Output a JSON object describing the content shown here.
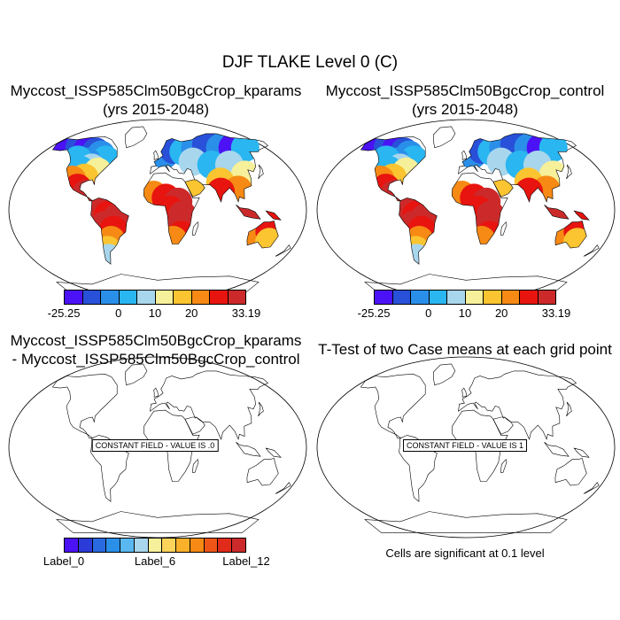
{
  "title": "DJF TLAKE Level 0 (C)",
  "panels": [
    {
      "title1": "Myccost_ISSP585Clm50BgcCrop_kparams",
      "title2": "(yrs 2015-2048)"
    },
    {
      "title1": "Myccost_ISSP585Clm50BgcCrop_control",
      "title2": "(yrs 2015-2048)"
    },
    {
      "title1": "Myccost_ISSP585Clm50BgcCrop_kparams",
      "title2": "- Myccost_ISSP585Clm50BgcCrop_control",
      "note": "CONSTANT FIELD - VALUE IS .0"
    },
    {
      "title1": "T-Test of two Case means at each grid point",
      "note": "CONSTANT FIELD - VALUE IS 1",
      "footer": "Cells are significant at 0.1 level"
    }
  ],
  "colorbar_top": {
    "colors": [
      "#4b12f5",
      "#2850d8",
      "#2a8fe9",
      "#2ab6f0",
      "#a8d6ec",
      "#f7f09a",
      "#fbc431",
      "#f68a14",
      "#e8140f",
      "#cc2a2a"
    ],
    "labels": [
      "-25.25",
      "0",
      "10",
      "20",
      "33.19"
    ]
  },
  "colorbar_bottom": {
    "colors": [
      "#4b12f5",
      "#2b3bd8",
      "#2a6ae0",
      "#2a8fe9",
      "#5ab8f0",
      "#a8d6ec",
      "#f7f09a",
      "#fbd25a",
      "#fbb02a",
      "#f68a14",
      "#f05518",
      "#e02a1a",
      "#cc2a2a"
    ],
    "labels": [
      "Label_0",
      "Label_6",
      "Label_12"
    ]
  },
  "chart_data": [
    {
      "type": "heatmap",
      "title": "Myccost_ISSP585Clm50BgcCrop_kparams (yrs 2015-2048)",
      "map": "world Robinson",
      "zmin": -25.25,
      "zmax": 33.19,
      "colorbar_ticks": [
        -25.25,
        0,
        10,
        20,
        33.19
      ]
    },
    {
      "type": "heatmap",
      "title": "Myccost_ISSP585Clm50BgcCrop_control (yrs 2015-2048)",
      "map": "world Robinson",
      "zmin": -25.25,
      "zmax": 33.19,
      "colorbar_ticks": [
        -25.25,
        0,
        10,
        20,
        33.19
      ]
    },
    {
      "type": "heatmap",
      "title": "Myccost_ISSP585Clm50BgcCrop_kparams - Myccost_ISSP585Clm50BgcCrop_control",
      "map": "world Robinson",
      "constant_value": 0.0,
      "colorbar_ticks": [
        "Label_0",
        "Label_6",
        "Label_12"
      ]
    },
    {
      "type": "heatmap",
      "title": "T-Test of two Case means at each grid point",
      "map": "world Robinson",
      "constant_value": 1,
      "significance_level": 0.1
    }
  ]
}
